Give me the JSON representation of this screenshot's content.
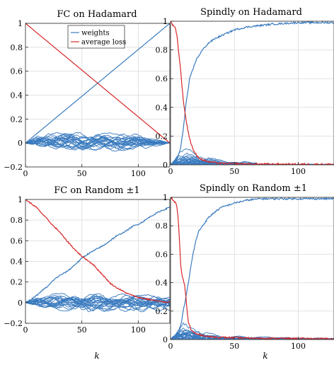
{
  "colors": {
    "weights": "#3a7bbf",
    "loss": "#d62728",
    "grid": "#e2e2e2",
    "axis": "#262626"
  },
  "chart_data": [
    {
      "type": "line",
      "title": "FC on Hadamard",
      "xlabel": "",
      "xlim": [
        0,
        128
      ],
      "ylim": [
        -0.2,
        1.0
      ],
      "xticks": [
        0,
        50,
        100
      ],
      "xtick_labels": [
        "0",
        "50",
        "100"
      ],
      "yticks": [
        -0.2,
        0,
        0.2,
        0.4,
        0.6,
        0.8,
        1
      ],
      "ytick_labels": [
        "−0.2",
        "0",
        "0.2",
        "0.4",
        "0.6",
        "0.8",
        "1"
      ],
      "grid": true,
      "legend": {
        "position": "top-center",
        "entries": [
          "weights",
          "average loss"
        ]
      },
      "series": [
        {
          "name": "weights",
          "kind": "line",
          "x": [
            0,
            128
          ],
          "y": [
            0,
            1
          ]
        },
        {
          "name": "weights",
          "kind": "band",
          "x": [
            0,
            10,
            30,
            60,
            100,
            128
          ],
          "y_upper": [
            0,
            0.07,
            0.1,
            0.1,
            0.08,
            0
          ],
          "y_lower": [
            0,
            -0.05,
            -0.08,
            -0.08,
            -0.07,
            0
          ]
        },
        {
          "name": "average loss",
          "kind": "line",
          "x": [
            0,
            128
          ],
          "y": [
            1,
            0
          ]
        }
      ]
    },
    {
      "type": "line",
      "title": "Spindly on Hadamard",
      "xlabel": "",
      "xlim": [
        0,
        128
      ],
      "ylim": [
        0,
        1.0
      ],
      "xticks": [
        0,
        50,
        100
      ],
      "xtick_labels": [
        "0",
        "50",
        "100"
      ],
      "yticks": [
        0,
        0.2,
        0.4,
        0.6,
        0.8,
        1
      ],
      "ytick_labels": [
        "0",
        "0.2",
        "0.4",
        "0.6",
        "0.8",
        "1"
      ],
      "grid": true,
      "series": [
        {
          "name": "weights",
          "kind": "line",
          "x": [
            0,
            4,
            6,
            8,
            10,
            12,
            15,
            20,
            25,
            30,
            35,
            40,
            45,
            50,
            60,
            70,
            80,
            90,
            100,
            110,
            120,
            128
          ],
          "y": [
            0,
            0.02,
            0.06,
            0.12,
            0.25,
            0.42,
            0.6,
            0.73,
            0.8,
            0.85,
            0.88,
            0.9,
            0.92,
            0.94,
            0.96,
            0.97,
            0.98,
            0.985,
            0.99,
            0.99,
            0.99,
            0.99
          ]
        },
        {
          "name": "weights",
          "kind": "band",
          "x": [
            0,
            5,
            10,
            15,
            20,
            30,
            40,
            50,
            60,
            67,
            68,
            128
          ],
          "y_upper": [
            0,
            0.09,
            0.14,
            0.12,
            0.09,
            0.06,
            0.04,
            0.03,
            0.025,
            0.02,
            0.005,
            0.005
          ],
          "y_lower": [
            0,
            0,
            0,
            0,
            0,
            0,
            0,
            0,
            0,
            0,
            0,
            0
          ]
        },
        {
          "name": "average loss",
          "kind": "line",
          "x": [
            0,
            2,
            4,
            5,
            6,
            8,
            10,
            12,
            14,
            16,
            18,
            20,
            22,
            25,
            30,
            35,
            40,
            50,
            70,
            128
          ],
          "y": [
            1,
            0.97,
            0.95,
            0.9,
            0.82,
            0.65,
            0.45,
            0.32,
            0.22,
            0.15,
            0.1,
            0.07,
            0.05,
            0.035,
            0.02,
            0.015,
            0.01,
            0.008,
            0.005,
            0.003
          ]
        }
      ]
    },
    {
      "type": "line",
      "title": "FC on Random ±1",
      "xlabel": "k",
      "xlim": [
        0,
        128
      ],
      "ylim": [
        -0.2,
        1.0
      ],
      "xticks": [
        0,
        50,
        100
      ],
      "xtick_labels": [
        "0",
        "50",
        "100"
      ],
      "yticks": [
        -0.2,
        0,
        0.2,
        0.4,
        0.6,
        0.8,
        1
      ],
      "ytick_labels": [
        "−0.2",
        "0",
        "0.2",
        "0.4",
        "0.6",
        "0.8",
        "1"
      ],
      "grid": true,
      "series": [
        {
          "name": "weights",
          "kind": "line",
          "x": [
            0,
            5,
            10,
            15,
            20,
            25,
            30,
            35,
            40,
            45,
            50,
            55,
            60,
            65,
            70,
            75,
            80,
            85,
            90,
            95,
            100,
            105,
            110,
            115,
            120,
            125,
            128
          ],
          "y": [
            0,
            0.03,
            0.07,
            0.12,
            0.16,
            0.22,
            0.26,
            0.29,
            0.33,
            0.38,
            0.43,
            0.47,
            0.5,
            0.53,
            0.56,
            0.6,
            0.64,
            0.67,
            0.7,
            0.74,
            0.76,
            0.79,
            0.83,
            0.86,
            0.89,
            0.91,
            0.93
          ]
        },
        {
          "name": "weights",
          "kind": "band",
          "x": [
            0,
            10,
            30,
            50,
            70,
            90,
            110,
            128
          ],
          "y_upper": [
            0,
            0.07,
            0.1,
            0.12,
            0.1,
            0.09,
            0.08,
            0.08
          ],
          "y_lower": [
            0,
            -0.05,
            -0.08,
            -0.09,
            -0.1,
            -0.09,
            -0.09,
            -0.08
          ]
        },
        {
          "name": "average loss",
          "kind": "line",
          "x": [
            0,
            5,
            10,
            15,
            20,
            25,
            30,
            35,
            40,
            45,
            50,
            55,
            60,
            65,
            70,
            75,
            80,
            85,
            90,
            95,
            100,
            105,
            110,
            115,
            120,
            125,
            128
          ],
          "y": [
            1,
            0.96,
            0.92,
            0.86,
            0.8,
            0.74,
            0.69,
            0.62,
            0.56,
            0.5,
            0.45,
            0.41,
            0.37,
            0.31,
            0.25,
            0.19,
            0.15,
            0.12,
            0.09,
            0.07,
            0.05,
            0.04,
            0.03,
            0.02,
            0.01,
            0.005,
            0.005
          ]
        }
      ]
    },
    {
      "type": "line",
      "title": "Spindly on Random ±1",
      "xlabel": "k",
      "xlim": [
        0,
        128
      ],
      "ylim": [
        0,
        1.0
      ],
      "xticks": [
        0,
        50,
        100
      ],
      "xtick_labels": [
        "0",
        "50",
        "100"
      ],
      "yticks": [
        0,
        0.2,
        0.4,
        0.6,
        0.8,
        1
      ],
      "ytick_labels": [
        "0",
        "0.2",
        "0.4",
        "0.6",
        "0.8",
        "1"
      ],
      "grid": true,
      "series": [
        {
          "name": "weights",
          "kind": "line",
          "x": [
            0,
            4,
            6,
            8,
            10,
            12,
            14,
            16,
            18,
            20,
            22,
            25,
            30,
            35,
            40,
            50,
            60,
            70,
            80,
            90,
            100,
            110,
            120,
            128
          ],
          "y": [
            0,
            0.02,
            0.05,
            0.1,
            0.2,
            0.3,
            0.4,
            0.52,
            0.62,
            0.7,
            0.76,
            0.8,
            0.86,
            0.9,
            0.93,
            0.96,
            0.98,
            0.99,
            0.99,
            0.99,
            0.99,
            0.99,
            0.99,
            0.99
          ]
        },
        {
          "name": "weights",
          "kind": "band",
          "x": [
            0,
            5,
            10,
            15,
            20,
            30,
            40,
            60,
            80,
            100,
            128
          ],
          "y_upper": [
            0,
            0.1,
            0.15,
            0.13,
            0.09,
            0.05,
            0.035,
            0.025,
            0.02,
            0.015,
            0.01
          ],
          "y_lower": [
            0,
            0,
            0,
            0,
            0,
            0,
            0,
            0,
            0,
            0,
            0
          ]
        },
        {
          "name": "average loss",
          "kind": "line",
          "x": [
            0,
            2,
            4,
            5,
            6,
            7,
            8,
            9,
            10,
            11,
            12,
            13,
            14,
            16,
            18,
            20,
            25,
            30,
            40,
            60,
            128
          ],
          "y": [
            1,
            0.98,
            0.96,
            0.93,
            0.85,
            0.7,
            0.52,
            0.45,
            0.42,
            0.38,
            0.3,
            0.2,
            0.12,
            0.07,
            0.05,
            0.04,
            0.03,
            0.02,
            0.015,
            0.01,
            0.005
          ]
        }
      ]
    }
  ]
}
